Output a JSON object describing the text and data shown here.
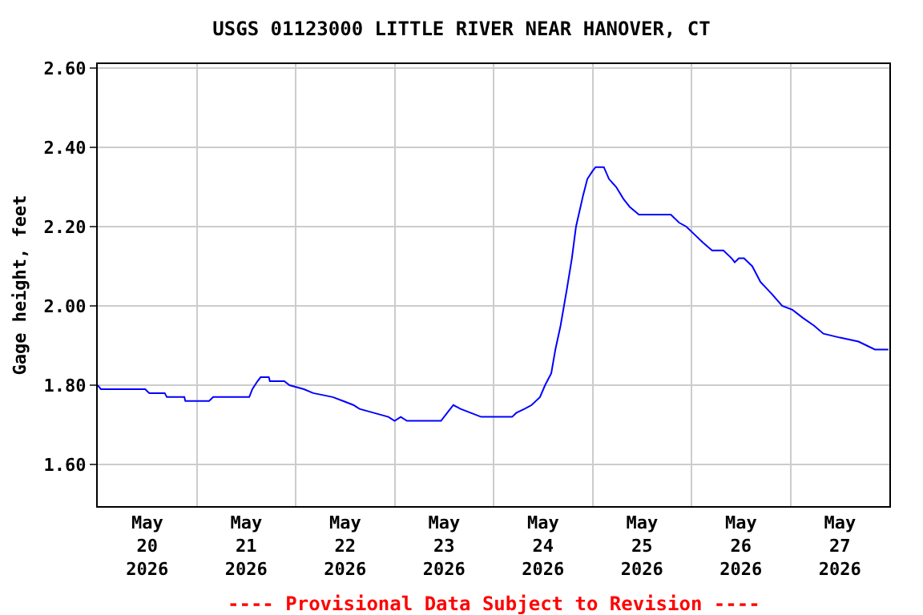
{
  "chart_data": {
    "type": "line",
    "title": "USGS 01123000 LITTLE RIVER NEAR HANOVER, CT",
    "ylabel": "Gage height, feet",
    "annotations": [
      "---- Provisional Data Subject to Revision ----"
    ],
    "x": [
      "2026-05-20T00:00",
      "2026-05-20T00:45",
      "2026-05-20T11:30",
      "2026-05-20T12:30",
      "2026-05-20T16:15",
      "2026-05-20T16:45",
      "2026-05-20T21:00",
      "2026-05-20T21:15",
      "2026-05-21T03:00",
      "2026-05-21T04:00",
      "2026-05-21T12:45",
      "2026-05-21T13:30",
      "2026-05-21T14:45",
      "2026-05-21T15:30",
      "2026-05-21T17:30",
      "2026-05-21T17:45",
      "2026-05-21T21:15",
      "2026-05-21T22:30",
      "2026-05-22T02:00",
      "2026-05-22T04:15",
      "2026-05-22T09:00",
      "2026-05-22T11:30",
      "2026-05-22T14:00",
      "2026-05-22T15:30",
      "2026-05-22T19:00",
      "2026-05-22T22:30",
      "2026-05-23T00:00",
      "2026-05-23T01:30",
      "2026-05-23T03:00",
      "2026-05-23T11:15",
      "2026-05-23T12:45",
      "2026-05-23T14:15",
      "2026-05-23T16:00",
      "2026-05-23T18:30",
      "2026-05-23T21:00",
      "2026-05-24T04:30",
      "2026-05-24T05:30",
      "2026-05-24T07:30",
      "2026-05-24T09:15",
      "2026-05-24T11:15",
      "2026-05-24T12:30",
      "2026-05-24T14:00",
      "2026-05-24T15:00",
      "2026-05-24T16:15",
      "2026-05-24T17:45",
      "2026-05-24T19:00",
      "2026-05-24T20:00",
      "2026-05-24T21:45",
      "2026-05-24T22:45",
      "2026-05-25T00:00",
      "2026-05-25T00:45",
      "2026-05-25T02:45",
      "2026-05-25T04:00",
      "2026-05-25T05:45",
      "2026-05-25T07:30",
      "2026-05-25T09:00",
      "2026-05-25T11:15",
      "2026-05-25T17:00",
      "2026-05-25T19:00",
      "2026-05-25T21:00",
      "2026-05-25T22:45",
      "2026-05-26T00:45",
      "2026-05-26T02:45",
      "2026-05-26T05:00",
      "2026-05-26T07:45",
      "2026-05-26T09:45",
      "2026-05-26T10:30",
      "2026-05-26T11:30",
      "2026-05-26T12:45",
      "2026-05-26T14:45",
      "2026-05-26T16:45",
      "2026-05-26T19:30",
      "2026-05-26T22:00",
      "2026-05-27T00:30",
      "2026-05-27T03:00",
      "2026-05-27T05:45",
      "2026-05-27T08:00",
      "2026-05-27T12:00",
      "2026-05-27T16:30",
      "2026-05-27T18:30",
      "2026-05-27T20:30",
      "2026-05-27T23:45"
    ],
    "series": [
      {
        "color": "#0000ff",
        "values": [
          1.8,
          1.79,
          1.79,
          1.78,
          1.78,
          1.77,
          1.77,
          1.76,
          1.76,
          1.77,
          1.77,
          1.79,
          1.81,
          1.82,
          1.82,
          1.81,
          1.81,
          1.8,
          1.79,
          1.78,
          1.77,
          1.76,
          1.75,
          1.74,
          1.73,
          1.72,
          1.71,
          1.72,
          1.71,
          1.71,
          1.73,
          1.75,
          1.74,
          1.73,
          1.72,
          1.72,
          1.73,
          1.74,
          1.75,
          1.77,
          1.8,
          1.83,
          1.89,
          1.95,
          2.04,
          2.12,
          2.2,
          2.28,
          2.32,
          2.34,
          2.35,
          2.35,
          2.32,
          2.3,
          2.27,
          2.25,
          2.23,
          2.23,
          2.23,
          2.21,
          2.2,
          2.18,
          2.16,
          2.14,
          2.14,
          2.12,
          2.11,
          2.12,
          2.12,
          2.1,
          2.06,
          2.03,
          2.0,
          1.99,
          1.97,
          1.95,
          1.93,
          1.92,
          1.91,
          1.9,
          1.89,
          1.89
        ]
      }
    ],
    "xlim": [
      "2026-05-20T00:00",
      "2026-05-28T00:00"
    ],
    "xticks": [
      {
        "value": "2026-05-20T12:00",
        "label": "May\n20\n2026"
      },
      {
        "value": "2026-05-21T12:00",
        "label": "May\n21\n2026"
      },
      {
        "value": "2026-05-22T12:00",
        "label": "May\n22\n2026"
      },
      {
        "value": "2026-05-23T12:00",
        "label": "May\n23\n2026"
      },
      {
        "value": "2026-05-24T12:00",
        "label": "May\n24\n2026"
      },
      {
        "value": "2026-05-25T12:00",
        "label": "May\n25\n2026"
      },
      {
        "value": "2026-05-26T12:00",
        "label": "May\n26\n2026"
      },
      {
        "value": "2026-05-27T12:00",
        "label": "May\n27\n2026"
      },
      {
        "value": "2026-05-21T00:00",
        "label": null
      },
      {
        "value": "2026-05-22T00:00",
        "label": null
      },
      {
        "value": "2026-05-23T00:00",
        "label": null
      },
      {
        "value": "2026-05-24T00:00",
        "label": null
      },
      {
        "value": "2026-05-25T00:00",
        "label": null
      },
      {
        "value": "2026-05-26T00:00",
        "label": null
      },
      {
        "value": "2026-05-27T00:00",
        "label": null
      }
    ],
    "ylim": [
      1.495,
      2.61
    ],
    "yticks": [
      {
        "value": 1.6,
        "label": "1.60"
      },
      {
        "value": 1.8,
        "label": "1.80"
      },
      {
        "value": 2.0,
        "label": "2.00"
      },
      {
        "value": 2.2,
        "label": "2.20"
      },
      {
        "value": 2.4,
        "label": "2.40"
      },
      {
        "value": 2.6,
        "label": "2.60"
      }
    ],
    "grid": true,
    "marker": "none",
    "line_style": "solid"
  }
}
